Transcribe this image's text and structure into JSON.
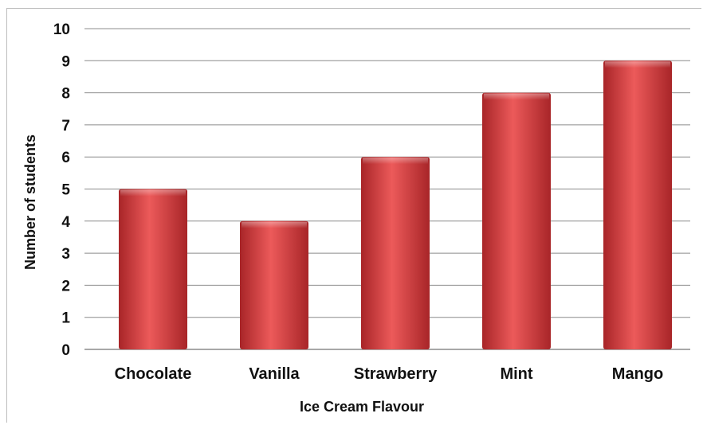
{
  "chart_data": {
    "type": "bar",
    "categories": [
      "Chocolate",
      "Vanilla",
      "Strawberry",
      "Mint",
      "Mango"
    ],
    "values": [
      5,
      4,
      6,
      8,
      9
    ],
    "xlabel": "Ice Cream Flavour",
    "ylabel": "Number of students",
    "ylim": [
      0,
      10
    ],
    "yticks": [
      "0",
      "1",
      "2",
      "3",
      "4",
      "5",
      "6",
      "7",
      "8",
      "9",
      "10"
    ],
    "grid": true,
    "legend": "none",
    "colors": {
      "bar": "#c9373a",
      "bar_light": "#ec5a5a",
      "bar_dark": "#a82528",
      "grid": "#8c8c8c"
    }
  }
}
